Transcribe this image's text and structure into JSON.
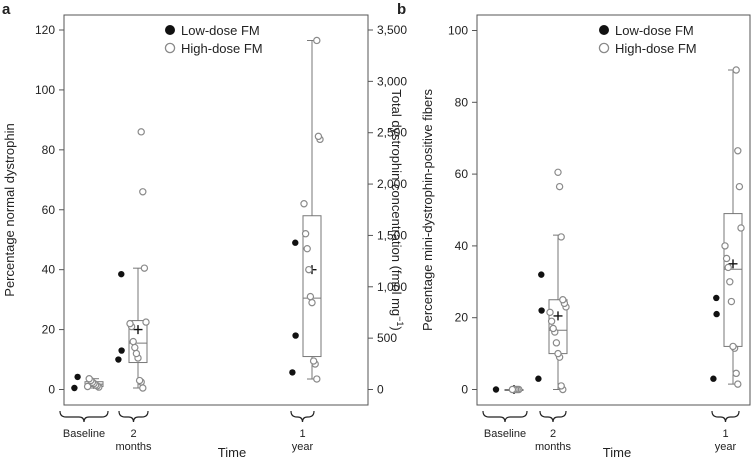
{
  "chart_data": [
    {
      "type": "scatter",
      "panel": "a",
      "xlabel": "Time",
      "ylabel": "Percentage normal dystrophin",
      "y2label_main": "Total dystrophin concentration (fmol mg",
      "y2label_sup": "−1",
      "y2label_end": ")",
      "ylim": [
        0,
        120
      ],
      "y2lim": [
        0,
        3500
      ],
      "yticks": [
        0,
        20,
        40,
        60,
        80,
        100,
        120
      ],
      "y2ticks": [
        "0",
        "500",
        "1,000",
        "1,500",
        "2,000",
        "2,500",
        "3,000",
        "3,500"
      ],
      "y2values": [
        0,
        500,
        1000,
        1500,
        2000,
        2500,
        3000,
        3500
      ],
      "legend": {
        "position": "top-right",
        "entries": [
          "Low-dose FM",
          "High-dose FM"
        ]
      },
      "groups": [
        {
          "label_lines": [
            "Baseline"
          ],
          "low_dose": [
            0.5,
            4.2
          ],
          "high_dose": [
            0.8,
            1.2,
            1.5,
            2.0,
            2.4,
            3.0,
            3.6,
            1.0
          ],
          "box": {
            "q1": 1.0,
            "median": 1.8,
            "q3": 2.6,
            "min": 0.5,
            "max": 3.6,
            "mean": 1.8
          }
        },
        {
          "label_lines": [
            "2",
            "months"
          ],
          "low_dose": [
            10.0,
            13.0,
            38.5
          ],
          "high_dose": [
            0.5,
            2.5,
            3.0,
            10.5,
            12.0,
            14.0,
            16.0,
            21.0,
            22.0,
            22.5,
            40.5,
            66.0,
            86.0
          ],
          "box": {
            "q1": 9.0,
            "median": 15.5,
            "q3": 23.0,
            "min": 0.5,
            "max": 40.5,
            "mean": 20.0
          }
        },
        {
          "label_lines": [
            "1",
            "year"
          ],
          "low_dose": [
            5.7,
            18.0,
            49.0
          ],
          "high_dose": [
            3.5,
            8.5,
            9.5,
            29.0,
            31.0,
            40.0,
            47.0,
            52.0,
            62.0,
            83.5,
            84.5,
            116.5
          ],
          "box": {
            "q1": 11.0,
            "median": 30.5,
            "q3": 58.0,
            "min": 3.5,
            "max": 116.5,
            "mean": 40.0
          }
        }
      ]
    },
    {
      "type": "scatter",
      "panel": "b",
      "xlabel": "Time",
      "ylabel": "Percentage mini-dystrophin-positive fibers",
      "ylim": [
        0,
        100
      ],
      "yticks": [
        0,
        20,
        40,
        60,
        80,
        100
      ],
      "legend": {
        "position": "top-right",
        "entries": [
          "Low-dose FM",
          "High-dose FM"
        ]
      },
      "groups": [
        {
          "label_lines": [
            "Baseline"
          ],
          "low_dose": [
            0.0
          ],
          "high_dose": [
            0.0,
            0.0,
            0.0,
            0.0,
            0.0
          ],
          "box": {
            "q1": 0.0,
            "median": 0.0,
            "q3": 0.0,
            "min": 0.0,
            "max": 0.0,
            "mean": 0.0
          }
        },
        {
          "label_lines": [
            "2",
            "months"
          ],
          "low_dose": [
            3.0,
            22.0,
            32.0
          ],
          "high_dose": [
            0.0,
            1.0,
            9.0,
            10.0,
            13.0,
            16.0,
            17.0,
            19.0,
            21.5,
            23.0,
            24.0,
            25.0,
            42.5,
            56.5,
            60.5
          ],
          "box": {
            "q1": 10.0,
            "median": 16.5,
            "q3": 25.0,
            "min": 0.0,
            "max": 43.0,
            "mean": 20.5
          }
        },
        {
          "label_lines": [
            "1",
            "year"
          ],
          "low_dose": [
            3.0,
            21.0,
            25.5
          ],
          "high_dose": [
            1.5,
            4.5,
            11.5,
            12.0,
            24.5,
            30.0,
            34.0,
            36.5,
            40.0,
            45.0,
            56.5,
            66.5,
            89.0
          ],
          "box": {
            "q1": 12.0,
            "median": 33.5,
            "q3": 49.0,
            "min": 1.5,
            "max": 89.0,
            "mean": 35.0
          }
        }
      ]
    }
  ]
}
